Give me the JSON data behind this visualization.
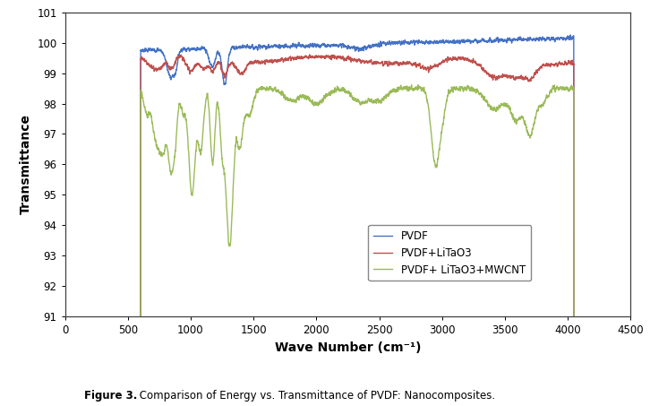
{
  "xlabel": "Wave Number (cm⁻¹)",
  "ylabel": "Transmittance",
  "xlim": [
    0,
    4500
  ],
  "ylim": [
    91,
    101
  ],
  "yticks": [
    91,
    92,
    93,
    94,
    95,
    96,
    97,
    98,
    99,
    100,
    101
  ],
  "xticks": [
    0,
    500,
    1000,
    1500,
    2000,
    2500,
    3000,
    3500,
    4000,
    4500
  ],
  "legend_labels": [
    "PVDF",
    "PVDF+LiTaO3",
    "PVDF+ LiTaO3+MWCNT"
  ],
  "colors": {
    "pvdf": "#4472C4",
    "litao3": "#C0504D",
    "mwcnt": "#9BBB59"
  },
  "caption_bold": "Figure 3.",
  "caption_normal": " Comparison of Energy vs. Transmittance of PVDF: Nanocomposites.",
  "background_color": "#ffffff",
  "line_width": 1.0
}
